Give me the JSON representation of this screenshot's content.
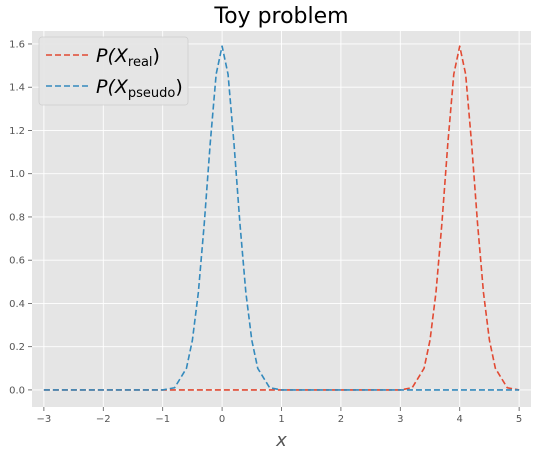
{
  "chart_data": {
    "type": "line",
    "title": "Toy problem",
    "xlabel": "x",
    "ylabel": "",
    "xlim": [
      -3.2,
      5.2
    ],
    "ylim": [
      -0.079,
      1.66
    ],
    "xticks": [
      -3,
      -2,
      -1,
      0,
      1,
      2,
      3,
      4,
      5
    ],
    "xtick_labels": [
      "−3",
      "−2",
      "−1",
      "0",
      "1",
      "2",
      "3",
      "4",
      "5"
    ],
    "yticks": [
      0.0,
      0.2,
      0.4,
      0.6,
      0.8,
      1.0,
      1.2,
      1.4,
      1.6
    ],
    "ytick_labels": [
      "0.0",
      "0.2",
      "0.4",
      "0.6",
      "0.8",
      "1.0",
      "1.2",
      "1.4",
      "1.6"
    ],
    "grid": true,
    "legend_position": "top-left",
    "series": [
      {
        "name": "P(X_real)",
        "legend_main": "P(X",
        "legend_sub": "real",
        "legend_close": ")",
        "color": "#E24A33",
        "linestyle": "dashed",
        "x": [
          -3.0,
          3.0,
          3.2,
          3.4,
          3.5,
          3.6,
          3.7,
          3.8,
          3.9,
          4.0,
          4.1,
          4.2,
          4.3,
          4.4,
          4.5,
          4.6,
          4.8,
          5.0
        ],
        "y": [
          0.0,
          0.0,
          0.01,
          0.1,
          0.23,
          0.45,
          0.77,
          1.14,
          1.46,
          1.59,
          1.46,
          1.14,
          0.77,
          0.45,
          0.23,
          0.1,
          0.01,
          0.0
        ]
      },
      {
        "name": "P(X_pseudo)",
        "legend_main": "P(X",
        "legend_sub": "pseudo",
        "legend_close": ")",
        "color": "#348ABD",
        "linestyle": "dashed",
        "x": [
          -3.0,
          -1.0,
          -0.8,
          -0.6,
          -0.5,
          -0.4,
          -0.3,
          -0.2,
          -0.1,
          0.0,
          0.1,
          0.2,
          0.3,
          0.4,
          0.5,
          0.6,
          0.8,
          1.0,
          5.0
        ],
        "y": [
          0.0,
          0.0,
          0.01,
          0.1,
          0.23,
          0.45,
          0.77,
          1.14,
          1.46,
          1.59,
          1.46,
          1.14,
          0.77,
          0.45,
          0.23,
          0.1,
          0.01,
          0.0,
          0.0
        ]
      }
    ]
  }
}
